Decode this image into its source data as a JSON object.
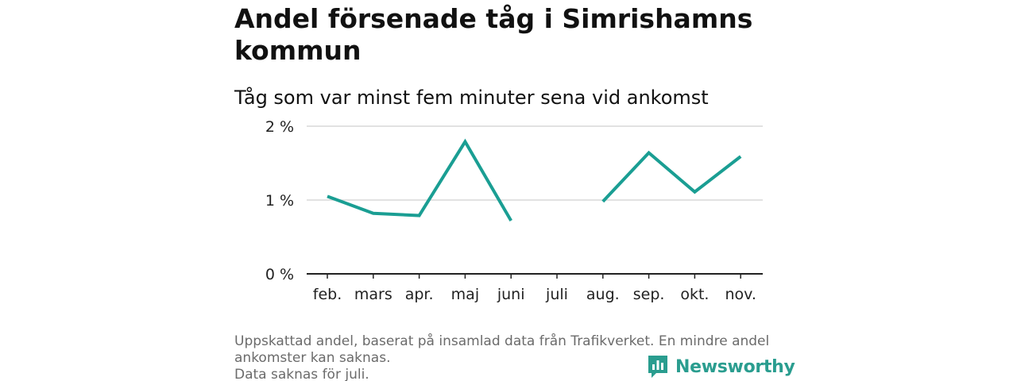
{
  "title": "Andel försenade tåg i Simrishamns kommun",
  "subtitle": "Tåg som var minst fem minuter sena vid ankomst",
  "footnote": {
    "line1": "Uppskattad andel, baserat på insamlad data från Trafikverket. En mindre andel",
    "line2": "ankomster kan saknas.",
    "line3": "Data saknas för juli."
  },
  "brand": {
    "name": "Newsworthy",
    "icon": "newsworthy-logo-icon",
    "color": "#2a9d8f"
  },
  "colors": {
    "line": "#1a9e93",
    "grid": "#d9d9d9",
    "axis": "#222222"
  },
  "chart_data": {
    "type": "line",
    "categories": [
      "feb.",
      "mars",
      "apr.",
      "maj",
      "juni",
      "juli",
      "aug.",
      "sep.",
      "okt.",
      "nov."
    ],
    "series": [
      {
        "values": [
          1.05,
          0.82,
          0.79,
          1.79,
          0.72,
          null,
          0.98,
          1.64,
          1.11,
          1.59
        ]
      }
    ],
    "yticks": [
      "0 %",
      "1 %",
      "2 %"
    ],
    "ytick_values": [
      0,
      1,
      2
    ],
    "ylim": [
      0,
      2
    ],
    "grid": true,
    "legend": false
  }
}
